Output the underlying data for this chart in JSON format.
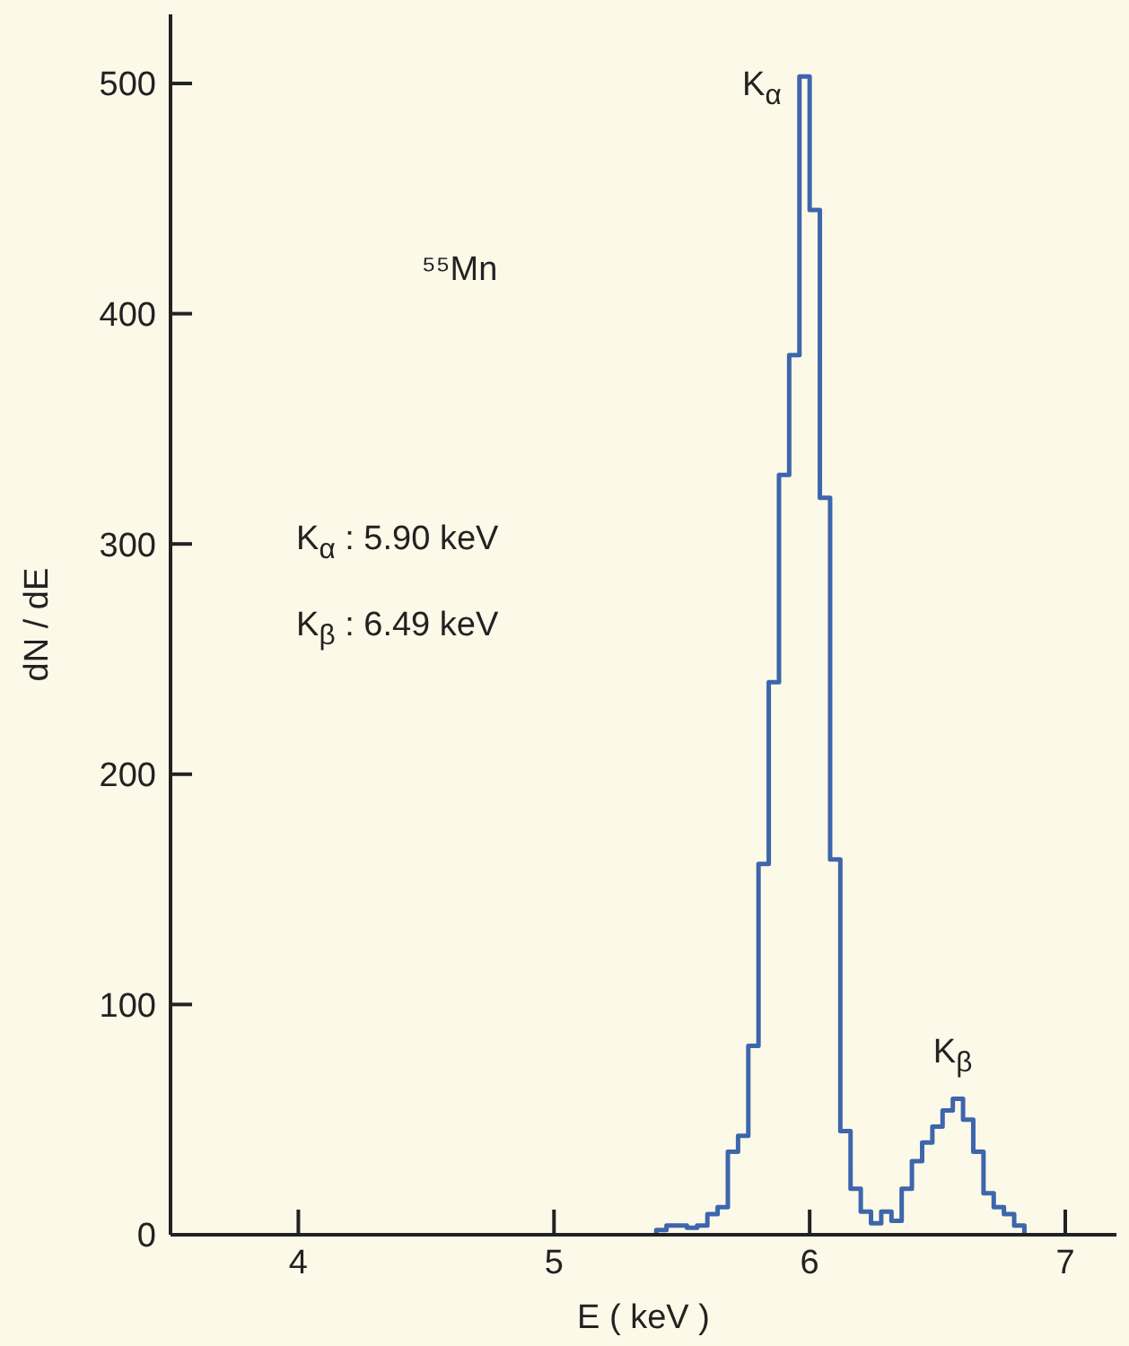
{
  "chart_data": {
    "type": "histogram",
    "xlabel": "E ( keV )",
    "ylabel": "dN / dE",
    "bins": [
      5.4,
      5.44,
      5.48,
      5.52,
      5.56,
      5.6,
      5.64,
      5.68,
      5.72,
      5.76,
      5.8,
      5.84,
      5.88,
      5.92,
      5.96,
      6.0,
      6.04,
      6.08,
      6.12,
      6.16,
      6.2,
      6.24,
      6.28,
      6.32,
      6.36,
      6.4,
      6.44,
      6.48,
      6.52,
      6.56,
      6.6,
      6.64,
      6.68,
      6.72,
      6.76,
      6.8,
      6.84
    ],
    "values": [
      2,
      4,
      4,
      3,
      4,
      9,
      12,
      36,
      43,
      82,
      161,
      240,
      330,
      382,
      503,
      445,
      320,
      163,
      45,
      20,
      10,
      5,
      10,
      6,
      20,
      32,
      40,
      47,
      54,
      59,
      50,
      36,
      18,
      12,
      9,
      4
    ],
    "color": "#3d66ac",
    "xlim": [
      3.5,
      7.2
    ],
    "xticks": [
      4,
      5,
      6,
      7
    ],
    "ylim": [
      0,
      530
    ],
    "yticks": [
      0,
      100,
      200,
      300,
      400,
      500
    ],
    "grid": false,
    "annotations": [
      {
        "text": "K$_{α}$",
        "x": 5.96,
        "y": 503
      },
      {
        "text": "K$_{β}$",
        "x": 6.56,
        "y": 59
      },
      "⁵⁵Mn",
      "K$_{α}$ : 5.90 keV",
      "K$_{β}$ : 6.49 keV"
    ]
  }
}
